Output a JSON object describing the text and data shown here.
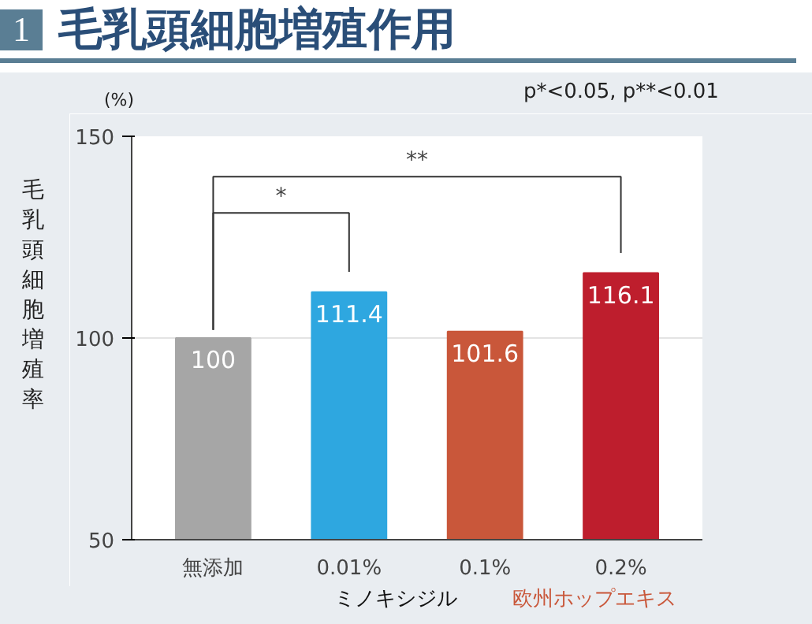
{
  "chart_data": {
    "type": "bar",
    "title": "1",
    "subtitle": "毛乳頭細胞増殖作用",
    "ylabel": "毛乳頭細胞増殖率",
    "categories": [
      "無添加",
      "0.01%",
      "0.1%",
      "0.2%"
    ],
    "values": [
      100,
      111.4,
      101.6,
      116.1
    ],
    "colors": [
      "#a6a6a6",
      "#2ea7e0",
      "#c9573a",
      "#be1e2d"
    ],
    "ylim": [
      50,
      150
    ],
    "yticks": [
      50,
      100,
      150
    ],
    "grid": "y",
    "data_labels": true,
    "annotations": [
      "(%)",
      "p*<0.05, p**<0.01",
      "*",
      "**",
      "ミノキシジル",
      "欧州ホップエキス"
    ]
  }
}
